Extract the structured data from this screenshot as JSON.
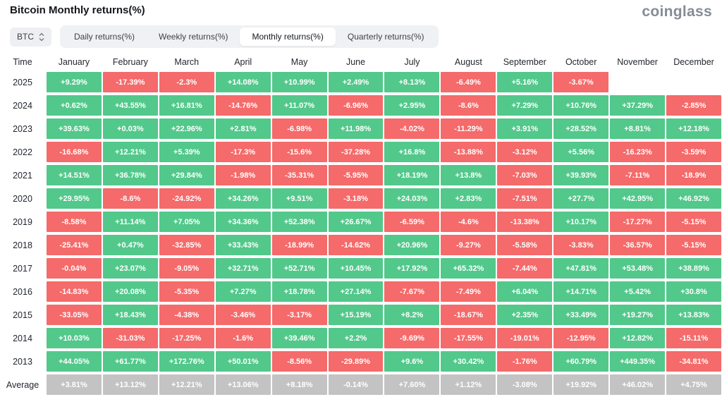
{
  "header": {
    "title": "Bitcoin Monthly returns(%)",
    "logo": "coinglass"
  },
  "controls": {
    "coin": "BTC",
    "tabs": [
      {
        "label": "Daily returns(%)"
      },
      {
        "label": "Weekly returns(%)"
      },
      {
        "label": "Monthly returns(%)"
      },
      {
        "label": "Quarterly returns(%)"
      }
    ],
    "active_tab": "Monthly returns(%)"
  },
  "colors": {
    "positive": "#52c88b",
    "negative": "#f56a6a",
    "average": "#c3c3c3"
  },
  "chart_data": {
    "type": "heatmap",
    "title": "Bitcoin Monthly returns(%)",
    "row_label": "Time",
    "columns": [
      "January",
      "February",
      "March",
      "April",
      "May",
      "June",
      "July",
      "August",
      "September",
      "October",
      "November",
      "December"
    ],
    "rows": [
      {
        "year": "2025",
        "values": [
          "+9.29%",
          "-17.39%",
          "-2.3%",
          "+14.08%",
          "+10.99%",
          "+2.49%",
          "+8.13%",
          "-6.49%",
          "+5.16%",
          "-3.67%",
          "",
          ""
        ]
      },
      {
        "year": "2024",
        "values": [
          "+0.62%",
          "+43.55%",
          "+16.81%",
          "-14.76%",
          "+11.07%",
          "-6.96%",
          "+2.95%",
          "-8.6%",
          "+7.29%",
          "+10.76%",
          "+37.29%",
          "-2.85%"
        ]
      },
      {
        "year": "2023",
        "values": [
          "+39.63%",
          "+0.03%",
          "+22.96%",
          "+2.81%",
          "-6.98%",
          "+11.98%",
          "-4.02%",
          "-11.29%",
          "+3.91%",
          "+28.52%",
          "+8.81%",
          "+12.18%"
        ]
      },
      {
        "year": "2022",
        "values": [
          "-16.68%",
          "+12.21%",
          "+5.39%",
          "-17.3%",
          "-15.6%",
          "-37.28%",
          "+16.8%",
          "-13.88%",
          "-3.12%",
          "+5.56%",
          "-16.23%",
          "-3.59%"
        ]
      },
      {
        "year": "2021",
        "values": [
          "+14.51%",
          "+36.78%",
          "+29.84%",
          "-1.98%",
          "-35.31%",
          "-5.95%",
          "+18.19%",
          "+13.8%",
          "-7.03%",
          "+39.93%",
          "-7.11%",
          "-18.9%"
        ]
      },
      {
        "year": "2020",
        "values": [
          "+29.95%",
          "-8.6%",
          "-24.92%",
          "+34.26%",
          "+9.51%",
          "-3.18%",
          "+24.03%",
          "+2.83%",
          "-7.51%",
          "+27.7%",
          "+42.95%",
          "+46.92%"
        ]
      },
      {
        "year": "2019",
        "values": [
          "-8.58%",
          "+11.14%",
          "+7.05%",
          "+34.36%",
          "+52.38%",
          "+26.67%",
          "-6.59%",
          "-4.6%",
          "-13.38%",
          "+10.17%",
          "-17.27%",
          "-5.15%"
        ]
      },
      {
        "year": "2018",
        "values": [
          "-25.41%",
          "+0.47%",
          "-32.85%",
          "+33.43%",
          "-18.99%",
          "-14.62%",
          "+20.96%",
          "-9.27%",
          "-5.58%",
          "-3.83%",
          "-36.57%",
          "-5.15%"
        ]
      },
      {
        "year": "2017",
        "values": [
          "-0.04%",
          "+23.07%",
          "-9.05%",
          "+32.71%",
          "+52.71%",
          "+10.45%",
          "+17.92%",
          "+65.32%",
          "-7.44%",
          "+47.81%",
          "+53.48%",
          "+38.89%"
        ]
      },
      {
        "year": "2016",
        "values": [
          "-14.83%",
          "+20.08%",
          "-5.35%",
          "+7.27%",
          "+18.78%",
          "+27.14%",
          "-7.67%",
          "-7.49%",
          "+6.04%",
          "+14.71%",
          "+5.42%",
          "+30.8%"
        ]
      },
      {
        "year": "2015",
        "values": [
          "-33.05%",
          "+18.43%",
          "-4.38%",
          "-3.46%",
          "-3.17%",
          "+15.19%",
          "+8.2%",
          "-18.67%",
          "+2.35%",
          "+33.49%",
          "+19.27%",
          "+13.83%"
        ]
      },
      {
        "year": "2014",
        "values": [
          "+10.03%",
          "-31.03%",
          "-17.25%",
          "-1.6%",
          "+39.46%",
          "+2.2%",
          "-9.69%",
          "-17.55%",
          "-19.01%",
          "-12.95%",
          "+12.82%",
          "-15.11%"
        ]
      },
      {
        "year": "2013",
        "values": [
          "+44.05%",
          "+61.77%",
          "+172.76%",
          "+50.01%",
          "-8.56%",
          "-29.89%",
          "+9.6%",
          "+30.42%",
          "-1.76%",
          "+60.79%",
          "+449.35%",
          "-34.81%"
        ]
      }
    ],
    "average": {
      "label": "Average",
      "values": [
        "+3.81%",
        "+13.12%",
        "+12.21%",
        "+13.06%",
        "+8.18%",
        "-0.14%",
        "+7.60%",
        "+1.12%",
        "-3.08%",
        "+19.92%",
        "+46.02%",
        "+4.75%"
      ]
    }
  }
}
